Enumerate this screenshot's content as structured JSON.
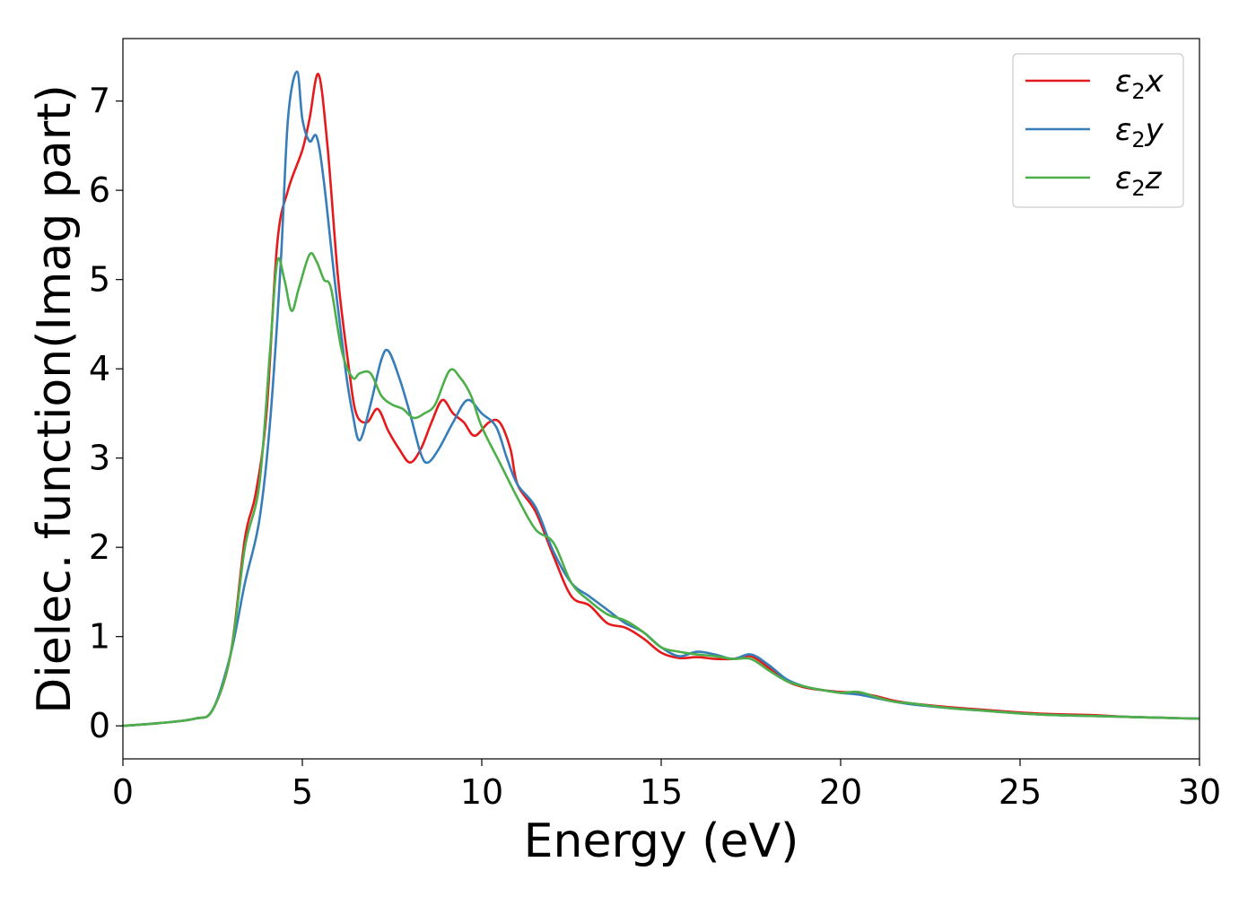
{
  "chart_data": {
    "type": "line",
    "title": "",
    "xlabel": "Energy (eV)",
    "ylabel": "Dielec. function(Imag part)",
    "xlim": [
      0,
      30
    ],
    "ylim": [
      -0.37,
      7.7
    ],
    "xticks": [
      0,
      5,
      10,
      15,
      20,
      25,
      30
    ],
    "yticks": [
      0,
      1,
      2,
      3,
      4,
      5,
      6,
      7
    ],
    "grid": false,
    "legend_position": "top-right",
    "series": [
      {
        "name": "ε2x",
        "legend_base": "ε",
        "legend_sub": "2",
        "legend_suffix": "x",
        "color": "#e41a1c",
        "points": [
          [
            0,
            0
          ],
          [
            1,
            0.03
          ],
          [
            2,
            0.08
          ],
          [
            2.5,
            0.18
          ],
          [
            3,
            0.8
          ],
          [
            3.4,
            2.1
          ],
          [
            3.7,
            2.6
          ],
          [
            4.0,
            3.5
          ],
          [
            4.3,
            5.4
          ],
          [
            4.6,
            6.0
          ],
          [
            5.0,
            6.45
          ],
          [
            5.2,
            6.8
          ],
          [
            5.45,
            7.3
          ],
          [
            5.7,
            6.5
          ],
          [
            6.0,
            5.0
          ],
          [
            6.3,
            4.0
          ],
          [
            6.5,
            3.5
          ],
          [
            6.8,
            3.4
          ],
          [
            7.1,
            3.55
          ],
          [
            7.4,
            3.3
          ],
          [
            7.7,
            3.1
          ],
          [
            8.0,
            2.95
          ],
          [
            8.3,
            3.1
          ],
          [
            8.6,
            3.4
          ],
          [
            8.9,
            3.65
          ],
          [
            9.2,
            3.5
          ],
          [
            9.5,
            3.4
          ],
          [
            9.8,
            3.25
          ],
          [
            10.2,
            3.4
          ],
          [
            10.5,
            3.4
          ],
          [
            10.8,
            3.1
          ],
          [
            11.0,
            2.7
          ],
          [
            11.5,
            2.4
          ],
          [
            12.0,
            1.9
          ],
          [
            12.5,
            1.45
          ],
          [
            13.0,
            1.35
          ],
          [
            13.5,
            1.15
          ],
          [
            14.0,
            1.1
          ],
          [
            14.5,
            0.98
          ],
          [
            15.0,
            0.82
          ],
          [
            15.5,
            0.76
          ],
          [
            16.0,
            0.77
          ],
          [
            16.5,
            0.75
          ],
          [
            17.0,
            0.75
          ],
          [
            17.5,
            0.78
          ],
          [
            18.0,
            0.65
          ],
          [
            18.5,
            0.5
          ],
          [
            19.0,
            0.43
          ],
          [
            19.5,
            0.4
          ],
          [
            20.0,
            0.38
          ],
          [
            20.5,
            0.37
          ],
          [
            21.0,
            0.33
          ],
          [
            21.5,
            0.28
          ],
          [
            22.0,
            0.25
          ],
          [
            23.0,
            0.21
          ],
          [
            24.0,
            0.18
          ],
          [
            25.0,
            0.15
          ],
          [
            26.0,
            0.13
          ],
          [
            27.0,
            0.12
          ],
          [
            28.0,
            0.1
          ],
          [
            29.0,
            0.09
          ],
          [
            30.0,
            0.08
          ]
        ]
      },
      {
        "name": "ε2y",
        "legend_base": "ε",
        "legend_sub": "2",
        "legend_suffix": "y",
        "color": "#377eb8",
        "points": [
          [
            0,
            0
          ],
          [
            1,
            0.03
          ],
          [
            2,
            0.08
          ],
          [
            2.5,
            0.18
          ],
          [
            3,
            0.8
          ],
          [
            3.4,
            1.6
          ],
          [
            3.8,
            2.3
          ],
          [
            4.1,
            3.4
          ],
          [
            4.4,
            5.2
          ],
          [
            4.6,
            6.8
          ],
          [
            4.85,
            7.33
          ],
          [
            5.0,
            6.8
          ],
          [
            5.2,
            6.55
          ],
          [
            5.4,
            6.6
          ],
          [
            5.6,
            6.1
          ],
          [
            5.9,
            5.0
          ],
          [
            6.2,
            4.0
          ],
          [
            6.4,
            3.5
          ],
          [
            6.6,
            3.2
          ],
          [
            6.9,
            3.6
          ],
          [
            7.2,
            4.1
          ],
          [
            7.4,
            4.2
          ],
          [
            7.7,
            3.9
          ],
          [
            8.0,
            3.5
          ],
          [
            8.3,
            3.05
          ],
          [
            8.5,
            2.95
          ],
          [
            8.8,
            3.1
          ],
          [
            9.2,
            3.4
          ],
          [
            9.6,
            3.65
          ],
          [
            10.0,
            3.5
          ],
          [
            10.4,
            3.35
          ],
          [
            10.7,
            3.0
          ],
          [
            11.0,
            2.7
          ],
          [
            11.5,
            2.45
          ],
          [
            12.0,
            1.95
          ],
          [
            12.5,
            1.6
          ],
          [
            13.0,
            1.45
          ],
          [
            13.5,
            1.3
          ],
          [
            14.0,
            1.15
          ],
          [
            14.5,
            1.05
          ],
          [
            15.0,
            0.88
          ],
          [
            15.5,
            0.78
          ],
          [
            16.0,
            0.83
          ],
          [
            16.5,
            0.8
          ],
          [
            17.0,
            0.75
          ],
          [
            17.5,
            0.8
          ],
          [
            18.0,
            0.68
          ],
          [
            18.5,
            0.52
          ],
          [
            19.0,
            0.44
          ],
          [
            19.5,
            0.4
          ],
          [
            20.0,
            0.37
          ],
          [
            20.5,
            0.35
          ],
          [
            21.0,
            0.31
          ],
          [
            21.5,
            0.27
          ],
          [
            22.0,
            0.24
          ],
          [
            23.0,
            0.2
          ],
          [
            24.0,
            0.17
          ],
          [
            25.0,
            0.14
          ],
          [
            26.0,
            0.12
          ],
          [
            27.0,
            0.11
          ],
          [
            28.0,
            0.1
          ],
          [
            29.0,
            0.09
          ],
          [
            30.0,
            0.08
          ]
        ]
      },
      {
        "name": "ε2z",
        "legend_base": "ε",
        "legend_sub": "2",
        "legend_suffix": "z",
        "color": "#4daf4a",
        "points": [
          [
            0,
            0
          ],
          [
            1,
            0.03
          ],
          [
            2,
            0.08
          ],
          [
            2.5,
            0.18
          ],
          [
            3,
            0.8
          ],
          [
            3.4,
            2.0
          ],
          [
            3.8,
            2.7
          ],
          [
            4.1,
            4.2
          ],
          [
            4.3,
            5.2
          ],
          [
            4.5,
            5.0
          ],
          [
            4.7,
            4.65
          ],
          [
            4.9,
            4.9
          ],
          [
            5.2,
            5.28
          ],
          [
            5.4,
            5.2
          ],
          [
            5.6,
            5.0
          ],
          [
            5.8,
            4.9
          ],
          [
            6.1,
            4.2
          ],
          [
            6.4,
            3.9
          ],
          [
            6.6,
            3.95
          ],
          [
            6.9,
            3.95
          ],
          [
            7.2,
            3.7
          ],
          [
            7.5,
            3.6
          ],
          [
            7.8,
            3.55
          ],
          [
            8.1,
            3.45
          ],
          [
            8.4,
            3.5
          ],
          [
            8.7,
            3.6
          ],
          [
            9.1,
            3.98
          ],
          [
            9.4,
            3.9
          ],
          [
            9.7,
            3.7
          ],
          [
            10.0,
            3.35
          ],
          [
            10.5,
            2.95
          ],
          [
            11.0,
            2.55
          ],
          [
            11.5,
            2.2
          ],
          [
            12.0,
            2.05
          ],
          [
            12.5,
            1.6
          ],
          [
            13.0,
            1.4
          ],
          [
            13.5,
            1.25
          ],
          [
            14.0,
            1.18
          ],
          [
            14.5,
            1.05
          ],
          [
            15.0,
            0.88
          ],
          [
            15.5,
            0.83
          ],
          [
            16.0,
            0.8
          ],
          [
            16.5,
            0.78
          ],
          [
            17.0,
            0.75
          ],
          [
            17.5,
            0.75
          ],
          [
            18.0,
            0.62
          ],
          [
            18.5,
            0.5
          ],
          [
            19.0,
            0.44
          ],
          [
            19.5,
            0.4
          ],
          [
            20.0,
            0.37
          ],
          [
            20.5,
            0.38
          ],
          [
            21.0,
            0.32
          ],
          [
            21.5,
            0.27
          ],
          [
            22.0,
            0.25
          ],
          [
            23.0,
            0.2
          ],
          [
            24.0,
            0.17
          ],
          [
            25.0,
            0.14
          ],
          [
            26.0,
            0.12
          ],
          [
            27.0,
            0.11
          ],
          [
            28.0,
            0.1
          ],
          [
            29.0,
            0.09
          ],
          [
            30.0,
            0.08
          ]
        ]
      }
    ]
  }
}
